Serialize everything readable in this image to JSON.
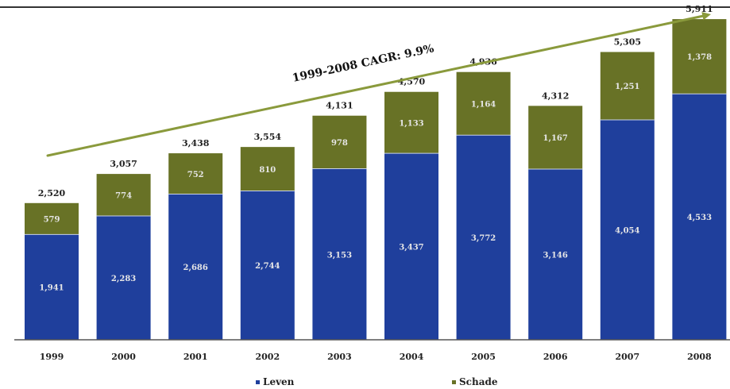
{
  "chart_data": {
    "type": "bar",
    "stacked": true,
    "categories": [
      "1999",
      "2000",
      "2001",
      "2002",
      "2003",
      "2004",
      "2005",
      "2006",
      "2007",
      "2008"
    ],
    "series": [
      {
        "name": "Leven",
        "color": "#1f3f9c",
        "values": [
          1941,
          2283,
          2686,
          2744,
          3153,
          3437,
          3772,
          3146,
          4054,
          4533
        ],
        "labels": [
          "1,941",
          "2,283",
          "2,686",
          "2,744",
          "3,153",
          "3,437",
          "3,772",
          "3,146",
          "4,054",
          "4,533"
        ]
      },
      {
        "name": "Schade",
        "color": "#687226",
        "values": [
          579,
          774,
          752,
          810,
          978,
          1133,
          1164,
          1167,
          1251,
          1378
        ],
        "labels": [
          "579",
          "774",
          "752",
          "810",
          "978",
          "1,133",
          "1,164",
          "1,167",
          "1,251",
          "1,378"
        ]
      }
    ],
    "totals": [
      2520,
      3057,
      3438,
      3554,
      4131,
      4570,
      4936,
      4312,
      5305,
      5911
    ],
    "total_labels": [
      "2,520",
      "3,057",
      "3,438",
      "3,554",
      "4,131",
      "4,570",
      "4,936",
      "4,312",
      "5,305",
      "5,911"
    ],
    "annotation": "1999-2008 CAGR:  9.9%",
    "ylim": [
      0,
      6000
    ],
    "grid": false,
    "legend_position": "bottom"
  },
  "colors": {
    "leven": "#1f3f9c",
    "schade": "#687226",
    "arrow": "#8a9a3c",
    "axis": "#555555",
    "bar_label": "#e6e6e6",
    "text": "#222222"
  }
}
